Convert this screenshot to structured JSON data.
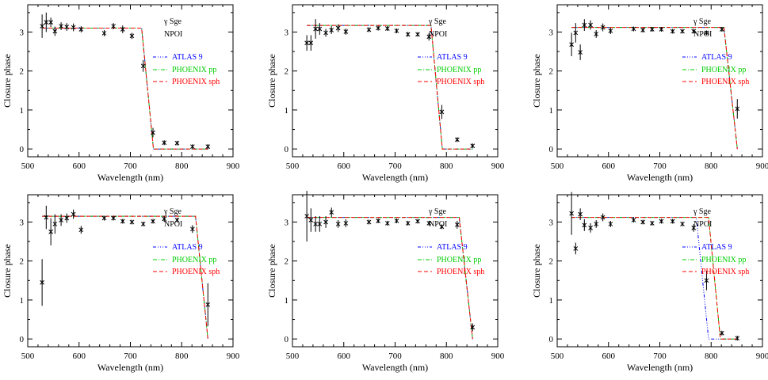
{
  "colors": {
    "atlas": "#0000ff",
    "phoenix_pp": "#00cc00",
    "phoenix_sph": "#ff0000",
    "data": "#000000"
  },
  "chart_data": [
    {
      "type": "scatter",
      "xlabel": "Wavelength (nm)",
      "ylabel": "Closure phase",
      "xlim": [
        500,
        900
      ],
      "ylim": [
        -0.2,
        3.7
      ],
      "xticks": [
        500,
        600,
        700,
        800,
        900
      ],
      "yticks": [
        0,
        1,
        2,
        3
      ],
      "annotation": {
        "line1": "γ Sge",
        "line2": "NPOI"
      },
      "legend": [
        "ATLAS 9",
        "PHOENIX pp",
        "PHOENIX sph"
      ],
      "observed": {
        "x": [
          528,
          536,
          545,
          553,
          565,
          576,
          589,
          604,
          649,
          667,
          685,
          703,
          725,
          744,
          766,
          791,
          821,
          851
        ],
        "y": [
          3.15,
          3.25,
          3.25,
          3.02,
          3.15,
          3.13,
          3.12,
          3.07,
          2.97,
          3.15,
          3.07,
          2.9,
          2.13,
          0.42,
          0.16,
          0.15,
          0.06,
          0.06
        ],
        "err": [
          0.3,
          0.25,
          0.12,
          0.12,
          0.1,
          0.1,
          0.1,
          0.08,
          0.08,
          0.08,
          0.1,
          0.08,
          0.15,
          0.12,
          0.05,
          0.05,
          0.05,
          0.06
        ]
      },
      "series": [
        {
          "name": "ATLAS 9",
          "x": [
            528,
            722,
            745,
            851
          ],
          "y": [
            3.1,
            3.1,
            0,
            0
          ]
        },
        {
          "name": "PHOENIX pp",
          "x": [
            528,
            722,
            745,
            851
          ],
          "y": [
            3.1,
            3.1,
            0,
            0
          ]
        },
        {
          "name": "PHOENIX sph",
          "x": [
            528,
            722,
            745,
            851
          ],
          "y": [
            3.1,
            3.1,
            0,
            0
          ]
        }
      ]
    },
    {
      "type": "scatter",
      "xlabel": "Wavelength (nm)",
      "ylabel": "Closure phase",
      "xlim": [
        500,
        900
      ],
      "ylim": [
        -0.2,
        3.7
      ],
      "xticks": [
        500,
        600,
        700,
        800,
        900
      ],
      "yticks": [
        0,
        1,
        2,
        3
      ],
      "annotation": {
        "line1": "γ Sge",
        "line2": "NPOI"
      },
      "legend": [
        "ATLAS 9",
        "PHOENIX pp",
        "PHOENIX sph"
      ],
      "observed": {
        "x": [
          528,
          536,
          545,
          553,
          565,
          576,
          589,
          604,
          649,
          667,
          685,
          703,
          725,
          744,
          766,
          791,
          821,
          851
        ],
        "y": [
          2.72,
          2.72,
          3.08,
          3.08,
          2.98,
          3.05,
          3.1,
          3.01,
          3.06,
          3.1,
          3.09,
          3.03,
          2.94,
          2.94,
          2.88,
          0.95,
          0.24,
          0.08
        ],
        "err": [
          0.2,
          0.2,
          0.25,
          0.15,
          0.1,
          0.1,
          0.1,
          0.08,
          0.06,
          0.06,
          0.06,
          0.06,
          0.05,
          0.05,
          0.1,
          0.18,
          0.05,
          0.05
        ]
      },
      "series": [
        {
          "name": "ATLAS 9",
          "x": [
            528,
            770,
            792,
            851
          ],
          "y": [
            3.17,
            3.17,
            0,
            0
          ]
        },
        {
          "name": "PHOENIX pp",
          "x": [
            528,
            770,
            792,
            851
          ],
          "y": [
            3.17,
            3.17,
            0,
            0
          ]
        },
        {
          "name": "PHOENIX sph",
          "x": [
            528,
            770,
            792,
            851
          ],
          "y": [
            3.17,
            3.17,
            0,
            0
          ]
        }
      ]
    },
    {
      "type": "scatter",
      "xlabel": "Wavelength (nm)",
      "ylabel": "Closure phase",
      "xlim": [
        500,
        900
      ],
      "ylim": [
        -0.2,
        3.7
      ],
      "xticks": [
        500,
        600,
        700,
        800,
        900
      ],
      "yticks": [
        0,
        1,
        2,
        3
      ],
      "annotation": {
        "line1": "γ Sge",
        "line2": "NPOI"
      },
      "legend": [
        "ATLAS 9",
        "PHOENIX pp",
        "PHOENIX sph"
      ],
      "observed": {
        "x": [
          528,
          536,
          545,
          553,
          565,
          576,
          589,
          604,
          649,
          667,
          685,
          703,
          725,
          744,
          766,
          791,
          821,
          851
        ],
        "y": [
          2.68,
          2.98,
          2.48,
          3.18,
          3.18,
          2.95,
          3.12,
          3.03,
          3.08,
          3.05,
          3.07,
          3.07,
          3.02,
          3.02,
          3.02,
          2.98,
          3.07,
          1.03
        ],
        "err": [
          0.3,
          0.25,
          0.2,
          0.15,
          0.12,
          0.1,
          0.1,
          0.08,
          0.06,
          0.06,
          0.06,
          0.06,
          0.05,
          0.05,
          0.05,
          0.05,
          0.06,
          0.25
        ]
      },
      "series": [
        {
          "name": "ATLAS 9",
          "x": [
            528,
            825,
            851
          ],
          "y": [
            3.12,
            3.12,
            0
          ]
        },
        {
          "name": "PHOENIX pp",
          "x": [
            528,
            825,
            851
          ],
          "y": [
            3.12,
            3.12,
            0
          ]
        },
        {
          "name": "PHOENIX sph",
          "x": [
            528,
            825,
            851
          ],
          "y": [
            3.12,
            3.12,
            0
          ]
        }
      ]
    },
    {
      "type": "scatter",
      "xlabel": "Wavelength (nm)",
      "ylabel": "Closure phase",
      "xlim": [
        500,
        900
      ],
      "ylim": [
        -0.2,
        3.7
      ],
      "xticks": [
        500,
        600,
        700,
        800,
        900
      ],
      "yticks": [
        0,
        1,
        2,
        3
      ],
      "annotation": {
        "line1": "γ Sge",
        "line2": "NPOI"
      },
      "legend": [
        "ATLAS 9",
        "PHOENIX pp",
        "PHOENIX sph"
      ],
      "observed": {
        "x": [
          528,
          536,
          545,
          553,
          565,
          576,
          589,
          604,
          649,
          667,
          685,
          703,
          725,
          744,
          766,
          791,
          821,
          851
        ],
        "y": [
          1.45,
          3.12,
          2.75,
          2.95,
          3.05,
          3.1,
          3.2,
          2.8,
          3.1,
          3.1,
          3.02,
          3.0,
          2.95,
          3.02,
          3.08,
          3.05,
          2.82,
          0.88
        ],
        "err": [
          0.6,
          0.3,
          0.35,
          0.25,
          0.15,
          0.12,
          0.12,
          0.1,
          0.06,
          0.06,
          0.05,
          0.05,
          0.05,
          0.05,
          0.08,
          0.05,
          0.1,
          0.55
        ]
      },
      "series": [
        {
          "name": "ATLAS 9",
          "x": [
            528,
            827,
            851
          ],
          "y": [
            3.15,
            3.15,
            0
          ]
        },
        {
          "name": "PHOENIX pp",
          "x": [
            528,
            827,
            851
          ],
          "y": [
            3.15,
            3.15,
            0
          ]
        },
        {
          "name": "PHOENIX sph",
          "x": [
            528,
            827,
            851
          ],
          "y": [
            3.15,
            3.15,
            0
          ]
        }
      ]
    },
    {
      "type": "scatter",
      "xlabel": "Wavelength (nm)",
      "ylabel": "Closure phase",
      "xlim": [
        500,
        900
      ],
      "ylim": [
        -0.2,
        3.7
      ],
      "xticks": [
        500,
        600,
        700,
        800,
        900
      ],
      "yticks": [
        0,
        1,
        2,
        3
      ],
      "annotation": {
        "line1": "γ Sge",
        "line2": "NPOI"
      },
      "legend": [
        "ATLAS 9",
        "PHOENIX pp",
        "PHOENIX sph"
      ],
      "observed": {
        "x": [
          528,
          536,
          545,
          553,
          565,
          576,
          589,
          604,
          649,
          667,
          685,
          703,
          725,
          744,
          766,
          791,
          821,
          851
        ],
        "y": [
          3.15,
          3.05,
          2.95,
          2.95,
          3.0,
          3.25,
          2.95,
          2.97,
          3.0,
          3.03,
          2.97,
          3.03,
          2.97,
          3.02,
          2.97,
          2.88,
          2.93,
          0.3
        ],
        "err": [
          0.65,
          0.3,
          0.2,
          0.2,
          0.15,
          0.12,
          0.1,
          0.1,
          0.05,
          0.05,
          0.05,
          0.05,
          0.05,
          0.05,
          0.05,
          0.05,
          0.1,
          0.1
        ]
      },
      "series": [
        {
          "name": "ATLAS 9",
          "x": [
            528,
            825,
            851
          ],
          "y": [
            3.12,
            3.12,
            0
          ]
        },
        {
          "name": "PHOENIX pp",
          "x": [
            528,
            825,
            851
          ],
          "y": [
            3.12,
            3.12,
            0
          ]
        },
        {
          "name": "PHOENIX sph",
          "x": [
            528,
            825,
            851
          ],
          "y": [
            3.12,
            3.12,
            0
          ]
        }
      ]
    },
    {
      "type": "scatter",
      "xlabel": "Wavelength (nm)",
      "ylabel": "Closure phase",
      "xlim": [
        500,
        900
      ],
      "ylim": [
        -0.2,
        3.7
      ],
      "xticks": [
        500,
        600,
        700,
        800,
        900
      ],
      "yticks": [
        0,
        1,
        2,
        3
      ],
      "annotation": {
        "line1": "γ Sge",
        "line2": "NPOI"
      },
      "legend": [
        "ATLAS 9",
        "PHOENIX pp",
        "PHOENIX sph"
      ],
      "observed": {
        "x": [
          528,
          536,
          545,
          553,
          565,
          576,
          589,
          604,
          649,
          667,
          685,
          703,
          725,
          744,
          766,
          791,
          821,
          851
        ],
        "y": [
          3.22,
          2.32,
          3.2,
          2.92,
          2.85,
          2.95,
          3.12,
          2.95,
          3.05,
          3.0,
          2.97,
          3.02,
          3.02,
          2.95,
          2.85,
          1.5,
          0.15,
          0.02
        ],
        "err": [
          0.55,
          0.15,
          0.15,
          0.15,
          0.12,
          0.1,
          0.1,
          0.08,
          0.05,
          0.05,
          0.05,
          0.05,
          0.05,
          0.05,
          0.1,
          0.25,
          0.05,
          0.05
        ]
      },
      "series": [
        {
          "name": "ATLAS 9",
          "x": [
            528,
            771,
            795,
            851
          ],
          "y": [
            3.12,
            3.12,
            0,
            0
          ]
        },
        {
          "name": "PHOENIX pp",
          "x": [
            528,
            795,
            818,
            851
          ],
          "y": [
            3.12,
            3.12,
            0,
            0
          ]
        },
        {
          "name": "PHOENIX sph",
          "x": [
            528,
            795,
            818,
            851
          ],
          "y": [
            3.12,
            3.12,
            0,
            0
          ]
        }
      ]
    }
  ]
}
